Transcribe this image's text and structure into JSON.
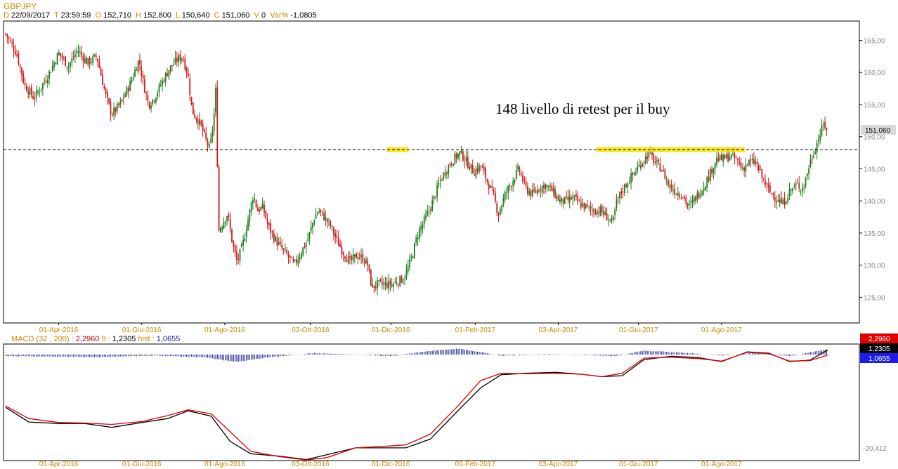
{
  "header": {
    "symbol": "GBPJPY",
    "fields": [
      {
        "key": "D",
        "value": "22/09/2017"
      },
      {
        "key": "T",
        "value": "23:59:59"
      },
      {
        "key": "O",
        "value": "152,710"
      },
      {
        "key": "H",
        "value": "152,800"
      },
      {
        "key": "L",
        "value": "150,640"
      },
      {
        "key": "C",
        "value": "151,060"
      },
      {
        "key": "V",
        "value": "0"
      },
      {
        "key": "Var%",
        "value": "-1,0805"
      }
    ]
  },
  "colors": {
    "up": "#1a7f1a",
    "down": "#d11a1a",
    "label_orange": "#cc8800",
    "price_tag_bg": "#d9d9d9",
    "highlight": "#f2e200",
    "macd_line": "#000000",
    "signal_line": "#e00000",
    "hist": "#1a1a8f"
  },
  "chart_data": [
    {
      "type": "candlestick",
      "title": "GBPJPY",
      "y_ticks": [
        "165,00",
        "160,00",
        "155,00",
        "150,00",
        "145,00",
        "140,00",
        "135,00",
        "130,00",
        "125,00"
      ],
      "ylim": [
        121,
        168
      ],
      "x_ticks": [
        "01-Apr-2016",
        "01-Giu-2016",
        "01-Ago-2016",
        "03-Ott-2016",
        "01-Dic-2016",
        "01-Feb-2017",
        "03-Apr-2017",
        "01-Giu-2017",
        "01-Ago-2017"
      ],
      "last_price_label": "151,060",
      "horizontal_line": 148,
      "annotation": "148 livello di retest per il buy",
      "highlight_zones": [
        {
          "from": "2016-11-28",
          "to": "2016-12-14",
          "level": 148
        },
        {
          "from": "2017-05-01",
          "to": "2017-08-18",
          "level": 148
        }
      ],
      "close_path": [
        [
          "2016-02-22",
          166.0
        ],
        [
          "2016-03-01",
          163.0
        ],
        [
          "2016-03-07",
          158.0
        ],
        [
          "2016-03-14",
          156.0
        ],
        [
          "2016-03-24",
          159.5
        ],
        [
          "2016-04-01",
          163.0
        ],
        [
          "2016-04-08",
          161.0
        ],
        [
          "2016-04-15",
          163.5
        ],
        [
          "2016-04-22",
          161.5
        ],
        [
          "2016-04-29",
          162.5
        ],
        [
          "2016-05-06",
          156.0
        ],
        [
          "2016-05-10",
          153.5
        ],
        [
          "2016-05-16",
          155.0
        ],
        [
          "2016-05-23",
          158.0
        ],
        [
          "2016-05-30",
          162.0
        ],
        [
          "2016-06-02",
          158.5
        ],
        [
          "2016-06-06",
          155.0
        ],
        [
          "2016-06-10",
          156.0
        ],
        [
          "2016-06-16",
          158.5
        ],
        [
          "2016-06-21",
          160.5
        ],
        [
          "2016-06-27",
          162.0
        ],
        [
          "2016-07-01",
          162.5
        ],
        [
          "2016-07-05",
          159.5
        ],
        [
          "2016-07-08",
          154.0
        ],
        [
          "2016-07-14",
          152.0
        ],
        [
          "2016-07-18",
          149.5
        ],
        [
          "2016-07-21",
          148.0
        ],
        [
          "2016-07-24",
          153.0
        ],
        [
          "2016-07-26",
          159.0
        ],
        [
          "2016-07-27",
          135.0
        ],
        [
          "2016-07-29",
          136.0
        ],
        [
          "2016-08-03",
          138.0
        ],
        [
          "2016-08-07",
          133.0
        ],
        [
          "2016-08-10",
          130.5
        ],
        [
          "2016-08-14",
          133.0
        ],
        [
          "2016-08-18",
          137.0
        ],
        [
          "2016-08-22",
          141.0
        ],
        [
          "2016-08-25",
          138.5
        ],
        [
          "2016-08-29",
          139.0
        ],
        [
          "2016-09-02",
          136.0
        ],
        [
          "2016-09-07",
          134.0
        ],
        [
          "2016-09-12",
          132.5
        ],
        [
          "2016-09-16",
          131.5
        ],
        [
          "2016-09-21",
          130.0
        ],
        [
          "2016-09-26",
          132.0
        ],
        [
          "2016-10-01",
          134.0
        ],
        [
          "2016-10-06",
          137.5
        ],
        [
          "2016-10-09",
          138.5
        ],
        [
          "2016-10-13",
          137.5
        ],
        [
          "2016-10-18",
          136.0
        ],
        [
          "2016-10-22",
          134.0
        ],
        [
          "2016-10-27",
          132.0
        ],
        [
          "2016-11-01",
          130.5
        ],
        [
          "2016-11-06",
          131.5
        ],
        [
          "2016-11-11",
          131.0
        ],
        [
          "2016-11-14",
          130.0
        ],
        [
          "2016-11-17",
          126.5
        ],
        [
          "2016-11-21",
          127.0
        ],
        [
          "2016-11-27",
          127.0
        ],
        [
          "2016-12-02",
          127.0
        ],
        [
          "2016-12-06",
          127.5
        ],
        [
          "2016-12-11",
          128.0
        ],
        [
          "2016-12-16",
          131.0
        ],
        [
          "2016-12-21",
          135.0
        ],
        [
          "2016-12-27",
          137.5
        ],
        [
          "2017-01-01",
          140.0
        ],
        [
          "2017-01-06",
          143.0
        ],
        [
          "2017-01-11",
          145.0
        ],
        [
          "2017-01-16",
          146.5
        ],
        [
          "2017-01-21",
          147.5
        ],
        [
          "2017-01-26",
          146.0
        ],
        [
          "2017-01-31",
          144.5
        ],
        [
          "2017-02-05",
          145.5
        ],
        [
          "2017-02-10",
          143.0
        ],
        [
          "2017-02-14",
          141.0
        ],
        [
          "2017-02-18",
          138.0
        ],
        [
          "2017-02-23",
          141.0
        ],
        [
          "2017-02-28",
          143.0
        ],
        [
          "2017-03-05",
          145.0
        ],
        [
          "2017-03-10",
          142.0
        ],
        [
          "2017-03-15",
          141.0
        ],
        [
          "2017-03-20",
          142.0
        ],
        [
          "2017-03-25",
          142.5
        ],
        [
          "2017-03-30",
          141.5
        ],
        [
          "2017-04-04",
          140.0
        ],
        [
          "2017-04-09",
          140.0
        ],
        [
          "2017-04-14",
          140.5
        ],
        [
          "2017-04-19",
          139.5
        ],
        [
          "2017-04-24",
          139.0
        ],
        [
          "2017-04-29",
          138.5
        ],
        [
          "2017-05-04",
          138.5
        ],
        [
          "2017-05-09",
          137.5
        ],
        [
          "2017-05-13",
          136.5
        ],
        [
          "2017-05-16",
          140.0
        ],
        [
          "2017-05-21",
          142.0
        ],
        [
          "2017-05-26",
          143.5
        ],
        [
          "2017-05-31",
          145.0
        ],
        [
          "2017-06-05",
          146.5
        ],
        [
          "2017-06-09",
          147.5
        ],
        [
          "2017-06-13",
          146.0
        ],
        [
          "2017-06-18",
          145.0
        ],
        [
          "2017-06-23",
          142.5
        ],
        [
          "2017-06-28",
          141.5
        ],
        [
          "2017-07-03",
          141.0
        ],
        [
          "2017-07-08",
          139.0
        ],
        [
          "2017-07-13",
          140.5
        ],
        [
          "2017-07-18",
          142.0
        ],
        [
          "2017-07-23",
          144.0
        ],
        [
          "2017-07-28",
          146.5
        ],
        [
          "2017-08-02",
          146.5
        ],
        [
          "2017-08-07",
          147.0
        ],
        [
          "2017-08-12",
          146.5
        ],
        [
          "2017-08-16",
          145.0
        ],
        [
          "2017-08-21",
          146.0
        ],
        [
          "2017-08-26",
          146.0
        ],
        [
          "2017-08-31",
          143.5
        ],
        [
          "2017-09-05",
          141.5
        ],
        [
          "2017-09-10",
          140.5
        ],
        [
          "2017-09-15",
          139.5
        ],
        [
          "2017-09-20",
          141.5
        ],
        [
          "2017-09-25",
          142.5
        ],
        [
          "2017-09-30",
          142.0
        ],
        [
          "2017-10-05",
          146.0
        ],
        [
          "2017-10-10",
          149.0
        ],
        [
          "2017-10-15",
          152.0
        ],
        [
          "2017-10-18",
          151.06
        ]
      ]
    },
    {
      "type": "line",
      "title": "MACD",
      "legend": {
        "params": "(32 , 200)",
        "macd": "2,2960",
        "signal_period": "9",
        "signal": "1,2305",
        "hist_label": "hist",
        "hist": "1,0655"
      },
      "y_labels": {
        "macd": "2,2960",
        "signal": "1,2305",
        "hist": "1,0655",
        "min": "-20,412"
      },
      "ylim": [
        -20.412,
        3.5
      ],
      "x_ticks": [
        "01-Apr-2016",
        "01-Giu-2016",
        "01-Ago-2016",
        "03-Ott-2016",
        "01-Dic-2016",
        "01-Feb-2017",
        "03-Apr-2017",
        "01-Giu-2017",
        "01-Ago-2017"
      ],
      "series": [
        {
          "name": "MACD",
          "values": [
            [
              "2016-02-22",
              -9.5
            ],
            [
              "2016-03-10",
              -12.5
            ],
            [
              "2016-04-01",
              -12.8
            ],
            [
              "2016-04-20",
              -12.8
            ],
            [
              "2016-05-10",
              -13.6
            ],
            [
              "2016-06-01",
              -12.6
            ],
            [
              "2016-06-20",
              -11.8
            ],
            [
              "2016-07-05",
              -10.2
            ],
            [
              "2016-07-22",
              -11.3
            ],
            [
              "2016-08-05",
              -16.5
            ],
            [
              "2016-08-20",
              -19.0
            ],
            [
              "2016-09-10",
              -19.5
            ],
            [
              "2016-09-30",
              -20.2
            ],
            [
              "2016-10-15",
              -19.2
            ],
            [
              "2016-11-05",
              -17.8
            ],
            [
              "2016-11-25",
              -17.8
            ],
            [
              "2016-12-12",
              -17.8
            ],
            [
              "2016-12-30",
              -16.0
            ],
            [
              "2017-01-20",
              -10.0
            ],
            [
              "2017-02-05",
              -5.5
            ],
            [
              "2017-02-20",
              -2.8
            ],
            [
              "2017-03-10",
              -2.5
            ],
            [
              "2017-04-01",
              -2.3
            ],
            [
              "2017-04-20",
              -2.7
            ],
            [
              "2017-05-05",
              -3.2
            ],
            [
              "2017-05-20",
              -3.0
            ],
            [
              "2017-06-05",
              0.3
            ],
            [
              "2017-06-25",
              1.0
            ],
            [
              "2017-07-15",
              0.7
            ],
            [
              "2017-08-01",
              -0.1
            ],
            [
              "2017-08-20",
              1.9
            ],
            [
              "2017-09-05",
              1.6
            ],
            [
              "2017-09-20",
              -0.1
            ],
            [
              "2017-10-05",
              0.2
            ],
            [
              "2017-10-18",
              2.296
            ]
          ]
        },
        {
          "name": "Signal",
          "values": [
            [
              "2016-02-22",
              -9.2
            ],
            [
              "2016-03-10",
              -11.8
            ],
            [
              "2016-04-01",
              -12.6
            ],
            [
              "2016-04-20",
              -12.7
            ],
            [
              "2016-05-10",
              -13.0
            ],
            [
              "2016-06-01",
              -12.4
            ],
            [
              "2016-06-20",
              -11.2
            ],
            [
              "2016-07-05",
              -10.0
            ],
            [
              "2016-07-22",
              -10.8
            ],
            [
              "2016-08-05",
              -14.5
            ],
            [
              "2016-08-20",
              -18.5
            ],
            [
              "2016-09-10",
              -19.6
            ],
            [
              "2016-09-30",
              -20.3
            ],
            [
              "2016-10-15",
              -19.8
            ],
            [
              "2016-11-05",
              -17.8
            ],
            [
              "2016-11-25",
              -17.5
            ],
            [
              "2016-12-12",
              -17.2
            ],
            [
              "2016-12-30",
              -15.0
            ],
            [
              "2017-01-20",
              -9.0
            ],
            [
              "2017-02-05",
              -4.0
            ],
            [
              "2017-02-20",
              -2.5
            ],
            [
              "2017-03-10",
              -2.6
            ],
            [
              "2017-04-01",
              -2.5
            ],
            [
              "2017-04-20",
              -2.7
            ],
            [
              "2017-05-05",
              -3.2
            ],
            [
              "2017-05-20",
              -2.5
            ],
            [
              "2017-06-05",
              0.6
            ],
            [
              "2017-06-25",
              0.8
            ],
            [
              "2017-07-15",
              0.5
            ],
            [
              "2017-08-01",
              0.0
            ],
            [
              "2017-08-20",
              1.8
            ],
            [
              "2017-09-05",
              1.5
            ],
            [
              "2017-09-20",
              0.0
            ],
            [
              "2017-10-05",
              0.1
            ],
            [
              "2017-10-18",
              1.2305
            ]
          ]
        }
      ],
      "histogram": [
        [
          "2016-02-22",
          -0.3
        ],
        [
          "2016-05-01",
          -0.5
        ],
        [
          "2016-06-10",
          -0.2
        ],
        [
          "2016-07-15",
          -0.5
        ],
        [
          "2016-08-10",
          -1.5
        ],
        [
          "2016-09-01",
          -0.6
        ],
        [
          "2016-10-05",
          0.3
        ],
        [
          "2016-11-05",
          0.0
        ],
        [
          "2016-12-01",
          -0.3
        ],
        [
          "2017-01-01",
          0.8
        ],
        [
          "2017-01-20",
          1.2
        ],
        [
          "2017-02-20",
          -0.2
        ],
        [
          "2017-04-01",
          0.1
        ],
        [
          "2017-05-15",
          -0.3
        ],
        [
          "2017-06-05",
          0.8
        ],
        [
          "2017-07-01",
          0.4
        ],
        [
          "2017-08-01",
          -0.2
        ],
        [
          "2017-08-25",
          0.3
        ],
        [
          "2017-09-20",
          -0.3
        ],
        [
          "2017-10-18",
          1.0655
        ]
      ]
    }
  ]
}
